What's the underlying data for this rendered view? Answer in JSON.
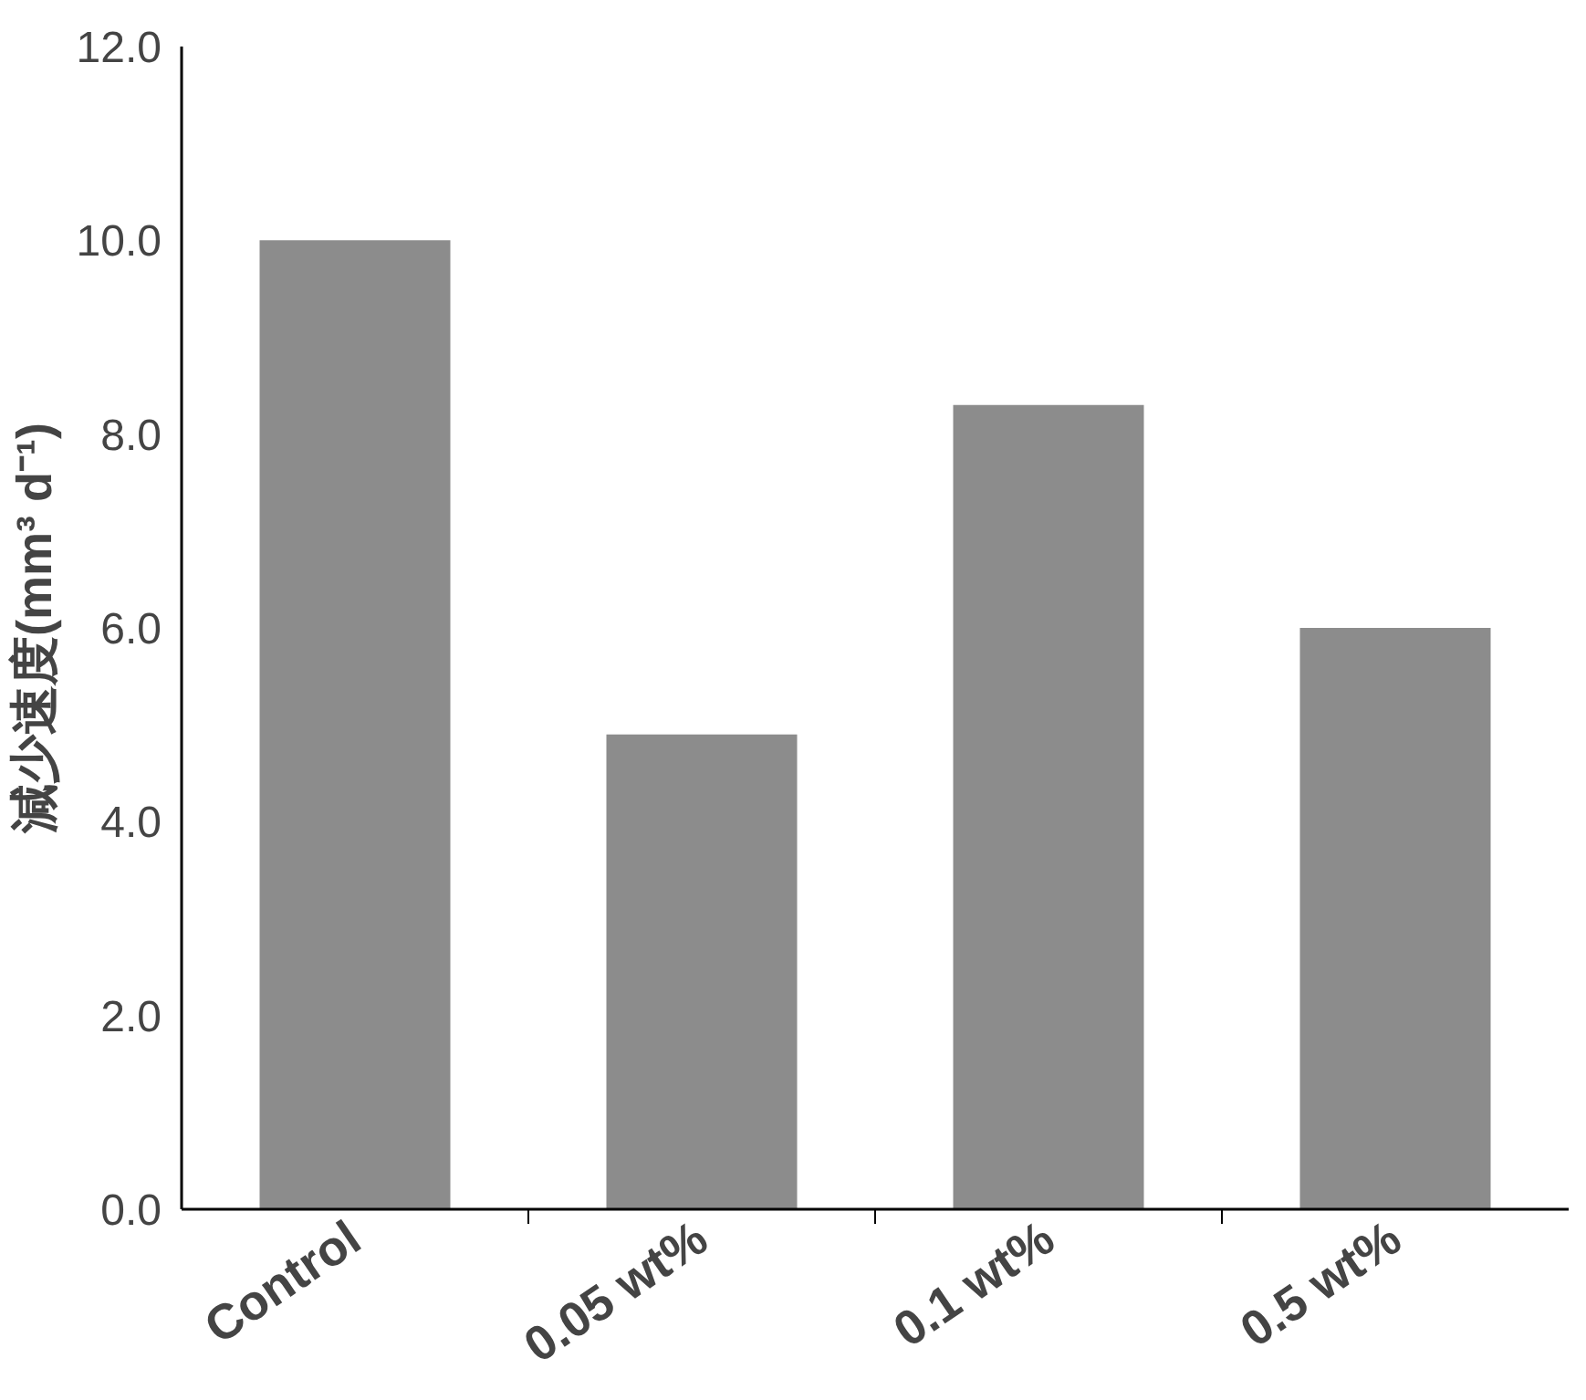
{
  "chart_data": {
    "type": "bar",
    "ylabel": "減少速度(mm³ d⁻¹)",
    "categories": [
      "Control",
      "0.05 wt%",
      "0.1 wt%",
      "0.5 wt%"
    ],
    "values": [
      10.0,
      4.9,
      8.3,
      6.0
    ],
    "color": "#8c8c8c",
    "ylim": [
      0,
      12
    ],
    "yticks": [
      {
        "value": 0,
        "label": "0.0"
      },
      {
        "value": 2,
        "label": "2.0"
      },
      {
        "value": 4,
        "label": "4.0"
      },
      {
        "value": 6,
        "label": "6.0"
      },
      {
        "value": 8,
        "label": "8.0"
      },
      {
        "value": 10,
        "label": "10.0"
      },
      {
        "value": 12,
        "label": "12.0"
      }
    ],
    "grid": false
  }
}
